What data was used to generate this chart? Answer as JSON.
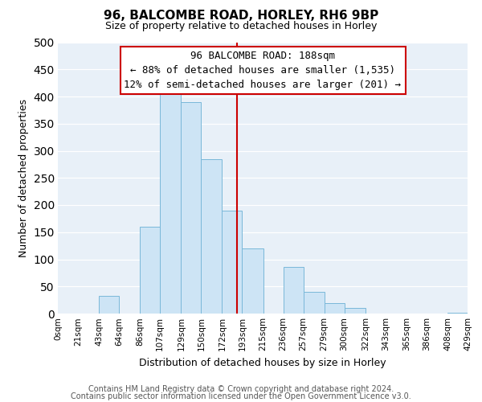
{
  "title": "96, BALCOMBE ROAD, HORLEY, RH6 9BP",
  "subtitle": "Size of property relative to detached houses in Horley",
  "xlabel": "Distribution of detached houses by size in Horley",
  "ylabel": "Number of detached properties",
  "footer_line1": "Contains HM Land Registry data © Crown copyright and database right 2024.",
  "footer_line2": "Contains public sector information licensed under the Open Government Licence v3.0.",
  "bar_edges": [
    0,
    21,
    43,
    64,
    86,
    107,
    129,
    150,
    172,
    193,
    215,
    236,
    257,
    279,
    300,
    322,
    343,
    365,
    386,
    408,
    429
  ],
  "bar_heights": [
    0,
    0,
    33,
    0,
    160,
    413,
    390,
    285,
    190,
    120,
    0,
    86,
    40,
    20,
    10,
    0,
    0,
    0,
    0,
    2
  ],
  "bar_color": "#cde4f5",
  "bar_edgecolor": "#7ab8d9",
  "reference_line_x": 188,
  "reference_line_color": "#cc0000",
  "annotation_title": "96 BALCOMBE ROAD: 188sqm",
  "annotation_line1": "← 88% of detached houses are smaller (1,535)",
  "annotation_line2": "12% of semi-detached houses are larger (201) →",
  "annotation_box_facecolor": "#ffffff",
  "annotation_box_edgecolor": "#cc0000",
  "xlim": [
    0,
    429
  ],
  "ylim": [
    0,
    500
  ],
  "tick_labels": [
    "0sqm",
    "21sqm",
    "43sqm",
    "64sqm",
    "86sqm",
    "107sqm",
    "129sqm",
    "150sqm",
    "172sqm",
    "193sqm",
    "215sqm",
    "236sqm",
    "257sqm",
    "279sqm",
    "300sqm",
    "322sqm",
    "343sqm",
    "365sqm",
    "386sqm",
    "408sqm",
    "429sqm"
  ],
  "tick_positions": [
    0,
    21,
    43,
    64,
    86,
    107,
    129,
    150,
    172,
    193,
    215,
    236,
    257,
    279,
    300,
    322,
    343,
    365,
    386,
    408,
    429
  ],
  "yticks": [
    0,
    50,
    100,
    150,
    200,
    250,
    300,
    350,
    400,
    450,
    500
  ],
  "plot_bg_color": "#e8f0f8",
  "fig_bg_color": "#ffffff",
  "title_fontsize": 11,
  "subtitle_fontsize": 9,
  "axis_label_fontsize": 9,
  "tick_fontsize": 7.5,
  "annotation_fontsize": 9,
  "footer_fontsize": 7
}
